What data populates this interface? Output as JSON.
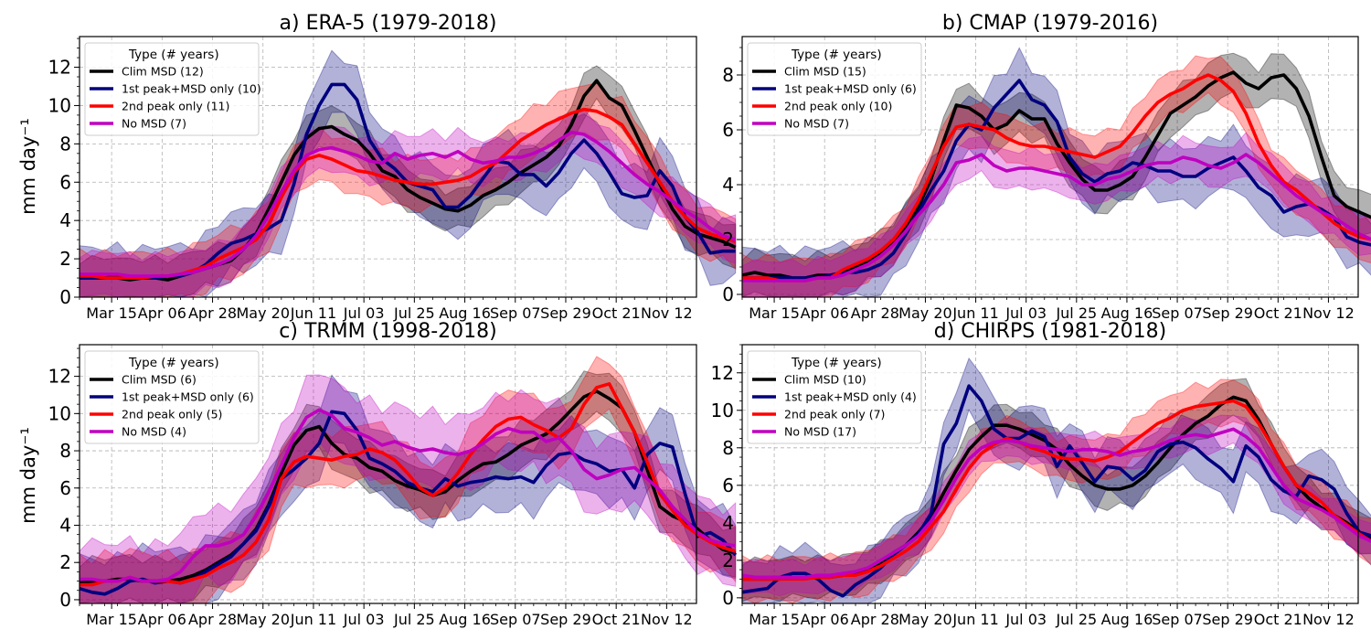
{
  "figure": {
    "ylabel": "mm day⁻¹"
  },
  "series_styles": [
    {
      "key": "clim",
      "color": "#000000"
    },
    {
      "key": "first",
      "color": "#00007f"
    },
    {
      "key": "second",
      "color": "#ff0000"
    },
    {
      "key": "none",
      "color": "#bf00bf"
    }
  ],
  "legend_title": "Type (# years)",
  "chart_data": [
    {
      "type": "line",
      "title": "a) ERA-5 (1979-2018)",
      "xlabel": "",
      "ylabel": "mm day⁻¹",
      "x_start_date": "Mar 01",
      "x_step_days": 5.5,
      "xticks": [
        "Mar 15",
        "Apr 06",
        "Apr 28",
        "May 20",
        "Jun 11",
        "Jul 03",
        "Jul 25",
        "Aug 16",
        "Sep 07",
        "Sep 29",
        "Oct 21",
        "Nov 12"
      ],
      "ylim": [
        0,
        13.6
      ],
      "yticks": [
        0,
        2,
        4,
        6,
        8,
        10,
        12
      ],
      "legend_position": "top-left",
      "series": [
        {
          "name": "Clim MSD (12)",
          "color": "#000000",
          "lo_hi": 1.2,
          "values": [
            1.0,
            1.0,
            1.0,
            1.0,
            0.9,
            1.0,
            1.0,
            0.9,
            1.1,
            1.3,
            1.5,
            1.7,
            1.9,
            2.5,
            3.3,
            4.6,
            6.0,
            7.4,
            8.3,
            8.8,
            8.9,
            8.5,
            8.2,
            7.5,
            6.6,
            6.3,
            5.6,
            5.2,
            4.9,
            4.6,
            4.5,
            4.8,
            5.3,
            5.6,
            6.0,
            6.5,
            6.9,
            7.3,
            7.9,
            9.0,
            10.5,
            11.3,
            10.4,
            10.0,
            8.7,
            7.3,
            5.9,
            4.6,
            3.7,
            3.3,
            3.1,
            2.9,
            2.6
          ]
        },
        {
          "name": "1st peak+MSD only (10)",
          "color": "#00007f",
          "lo_hi": 1.8,
          "values": [
            1.0,
            1.0,
            1.0,
            1.1,
            1.0,
            1.0,
            1.0,
            1.1,
            1.1,
            1.3,
            1.7,
            2.3,
            2.8,
            3.0,
            3.3,
            3.6,
            4.0,
            5.9,
            8.5,
            10.0,
            11.1,
            11.1,
            10.3,
            8.2,
            7.2,
            6.7,
            6.0,
            5.8,
            5.6,
            4.7,
            4.7,
            5.3,
            6.2,
            7.1,
            7.0,
            6.4,
            6.4,
            5.8,
            6.5,
            7.5,
            8.2,
            7.5,
            6.5,
            5.4,
            5.2,
            5.3,
            6.6,
            5.8,
            4.2,
            3.4,
            2.3,
            2.4,
            2.4
          ]
        },
        {
          "name": "2nd peak only (11)",
          "color": "#ff0000",
          "lo_hi": 1.5,
          "values": [
            1.1,
            1.1,
            1.0,
            1.0,
            1.0,
            1.0,
            1.1,
            1.1,
            1.2,
            1.4,
            1.6,
            2.0,
            2.3,
            2.6,
            3.0,
            3.8,
            5.2,
            6.5,
            7.2,
            7.4,
            7.2,
            6.9,
            6.6,
            6.5,
            6.3,
            6.1,
            6.0,
            5.9,
            5.9,
            6.0,
            6.1,
            6.3,
            6.7,
            7.0,
            7.6,
            8.2,
            8.6,
            9.0,
            9.3,
            9.6,
            9.8,
            9.7,
            9.4,
            9.0,
            8.0,
            7.0,
            6.0,
            5.0,
            4.2,
            3.6,
            3.3,
            3.1,
            2.9
          ]
        },
        {
          "name": "No MSD (7)",
          "color": "#bf00bf",
          "lo_hi": 1.3,
          "values": [
            1.2,
            1.2,
            1.2,
            1.2,
            1.1,
            1.1,
            1.1,
            1.1,
            1.2,
            1.3,
            1.5,
            1.7,
            2.0,
            2.5,
            3.2,
            4.3,
            5.5,
            6.6,
            7.4,
            7.7,
            7.8,
            7.6,
            7.4,
            7.1,
            7.0,
            7.5,
            7.2,
            7.4,
            7.5,
            7.3,
            7.6,
            7.2,
            7.0,
            7.1,
            7.3,
            7.3,
            7.5,
            7.8,
            8.2,
            8.6,
            8.5,
            8.1,
            7.6,
            7.0,
            6.4,
            5.9,
            5.5,
            5.0,
            4.5,
            4.1,
            3.6,
            3.2,
            3.0
          ]
        }
      ]
    },
    {
      "type": "line",
      "title": "b) CMAP (1979-2016)",
      "xlabel": "",
      "ylabel": "",
      "x_start_date": "Mar 01",
      "x_step_days": 5.5,
      "xticks": [
        "Mar 15",
        "Apr 06",
        "Apr 28",
        "May 20",
        "Jun 11",
        "Jul 03",
        "Jul 25",
        "Aug 16",
        "Sep 07",
        "Sep 29",
        "Oct 21",
        "Nov 12"
      ],
      "ylim": [
        -0.1,
        9.4
      ],
      "yticks": [
        0,
        2,
        4,
        6,
        8
      ],
      "legend_position": "top-left",
      "series": [
        {
          "name": "Clim MSD (15)",
          "color": "#000000",
          "lo_hi": 0.9,
          "values": [
            0.7,
            0.8,
            0.7,
            0.7,
            0.6,
            0.6,
            0.7,
            0.7,
            0.8,
            1.0,
            1.2,
            1.5,
            1.9,
            2.5,
            3.2,
            4.2,
            5.6,
            6.9,
            6.8,
            6.5,
            6.0,
            6.2,
            6.7,
            6.4,
            6.4,
            5.5,
            4.8,
            4.2,
            3.8,
            3.8,
            4.0,
            4.3,
            5.0,
            5.8,
            6.6,
            6.9,
            7.2,
            7.6,
            7.9,
            8.1,
            7.7,
            7.5,
            7.9,
            8.0,
            7.5,
            6.5,
            5.0,
            3.6,
            3.2,
            3.0,
            2.8,
            2.5,
            2.1
          ]
        },
        {
          "name": "1st peak+MSD only (6)",
          "color": "#00007f",
          "lo_hi": 1.2,
          "values": [
            0.6,
            0.6,
            0.6,
            0.6,
            0.6,
            0.6,
            0.6,
            0.7,
            0.8,
            0.8,
            0.9,
            1.1,
            1.5,
            2.2,
            3.0,
            3.8,
            4.5,
            5.6,
            6.2,
            6.0,
            6.8,
            7.3,
            7.8,
            7.1,
            6.9,
            6.3,
            5.0,
            4.4,
            4.1,
            4.4,
            4.5,
            4.8,
            4.7,
            4.5,
            4.5,
            4.3,
            4.3,
            4.6,
            4.8,
            5.0,
            4.5,
            3.9,
            3.6,
            3.0,
            3.2,
            3.3,
            3.1,
            2.8,
            2.1,
            1.9,
            1.8,
            1.6,
            1.5
          ]
        },
        {
          "name": "2nd peak only (10)",
          "color": "#ff0000",
          "lo_hi": 0.9,
          "values": [
            0.6,
            0.6,
            0.6,
            0.5,
            0.5,
            0.5,
            0.6,
            0.6,
            0.9,
            1.1,
            1.3,
            1.6,
            2.0,
            2.6,
            3.4,
            4.4,
            5.4,
            6.1,
            6.2,
            6.1,
            6.0,
            5.7,
            5.5,
            5.4,
            5.4,
            5.3,
            5.2,
            5.1,
            5.0,
            5.2,
            5.4,
            5.9,
            6.5,
            7.0,
            7.3,
            7.5,
            7.8,
            8.0,
            7.8,
            7.4,
            6.6,
            5.5,
            4.7,
            4.1,
            3.8,
            3.4,
            3.0,
            2.6,
            2.3,
            2.1,
            2.0,
            1.9,
            1.8
          ]
        },
        {
          "name": "No MSD (7)",
          "color": "#bf00bf",
          "lo_hi": 0.8,
          "values": [
            0.5,
            0.5,
            0.5,
            0.5,
            0.5,
            0.5,
            0.6,
            0.6,
            0.7,
            0.9,
            1.1,
            1.4,
            1.8,
            2.3,
            2.9,
            3.4,
            4.0,
            4.8,
            4.9,
            5.1,
            4.7,
            4.5,
            4.6,
            4.6,
            4.5,
            4.4,
            4.3,
            4.0,
            4.0,
            4.2,
            4.3,
            4.5,
            4.7,
            4.8,
            4.8,
            5.0,
            4.9,
            4.7,
            4.6,
            4.8,
            5.1,
            4.8,
            4.4,
            4.0,
            3.6,
            3.3,
            3.0,
            2.8,
            2.5,
            2.2,
            2.0,
            1.8,
            1.6
          ]
        }
      ]
    },
    {
      "type": "line",
      "title": "c) TRMM (1998-2018)",
      "xlabel": "",
      "ylabel": "mm day⁻¹",
      "x_start_date": "Mar 01",
      "x_step_days": 5.5,
      "xticks": [
        "Mar 15",
        "Apr 06",
        "Apr 28",
        "May 20",
        "Jun 11",
        "Jul 03",
        "Jul 25",
        "Aug 16",
        "Sep 07",
        "Sep 29",
        "Oct 21",
        "Nov 12"
      ],
      "ylim": [
        -0.2,
        13.7
      ],
      "yticks": [
        0,
        2,
        4,
        6,
        8,
        10,
        12
      ],
      "legend_position": "top-left",
      "series": [
        {
          "name": "Clim MSD (6)",
          "color": "#000000",
          "lo_hi": 1.4,
          "values": [
            0.9,
            1.0,
            1.0,
            1.1,
            1.1,
            1.0,
            1.0,
            1.0,
            1.1,
            1.3,
            1.6,
            2.0,
            2.4,
            3.0,
            3.8,
            5.1,
            6.8,
            8.3,
            9.1,
            9.3,
            8.4,
            7.8,
            7.6,
            7.1,
            6.9,
            6.4,
            6.1,
            5.9,
            5.6,
            5.8,
            6.4,
            6.9,
            7.3,
            7.4,
            7.8,
            8.3,
            8.6,
            8.9,
            9.5,
            10.2,
            10.9,
            11.2,
            10.8,
            10.3,
            9.0,
            7.0,
            5.0,
            4.5,
            4.2,
            3.8,
            3.2,
            2.7,
            2.5
          ]
        },
        {
          "name": "1st peak+MSD only (6)",
          "color": "#00007f",
          "lo_hi": 2.0,
          "values": [
            0.6,
            0.4,
            0.3,
            0.6,
            1.0,
            1.1,
            0.9,
            1.0,
            0.9,
            1.1,
            1.5,
            1.9,
            2.3,
            3.0,
            3.7,
            5.0,
            6.5,
            7.0,
            7.6,
            8.4,
            10.1,
            10.0,
            9.1,
            7.6,
            7.3,
            6.9,
            6.3,
            6.0,
            5.8,
            6.5,
            6.1,
            6.3,
            6.4,
            6.6,
            6.5,
            6.6,
            6.3,
            7.2,
            7.8,
            7.9,
            7.5,
            7.3,
            6.9,
            7.0,
            6.0,
            7.8,
            8.4,
            8.2,
            5.7,
            3.4,
            3.6,
            3.2,
            2.4
          ]
        },
        {
          "name": "2nd peak only (5)",
          "color": "#ff0000",
          "lo_hi": 1.7,
          "values": [
            0.8,
            0.8,
            1.0,
            1.0,
            1.2,
            1.0,
            1.0,
            1.0,
            0.9,
            1.1,
            1.3,
            1.7,
            2.0,
            2.4,
            3.1,
            4.3,
            6.5,
            7.4,
            7.7,
            7.6,
            7.5,
            7.7,
            7.8,
            8.1,
            7.9,
            7.5,
            6.8,
            6.0,
            5.6,
            6.0,
            6.8,
            7.8,
            8.6,
            9.3,
            9.7,
            9.8,
            9.4,
            9.1,
            8.7,
            9.2,
            10.5,
            11.4,
            11.6,
            10.3,
            9.0,
            7.4,
            5.7,
            4.8,
            4.0,
            3.5,
            3.1,
            2.8,
            2.6
          ]
        },
        {
          "name": "No MSD (4)",
          "color": "#bf00bf",
          "lo_hi": 2.3,
          "values": [
            1.1,
            1.1,
            1.0,
            1.0,
            1.2,
            1.0,
            1.0,
            1.1,
            1.5,
            2.3,
            2.9,
            2.9,
            3.1,
            3.5,
            4.5,
            5.8,
            7.2,
            8.7,
            9.8,
            10.2,
            9.9,
            9.2,
            9.0,
            8.7,
            8.3,
            8.5,
            8.2,
            8.0,
            8.1,
            7.9,
            7.8,
            8.0,
            8.4,
            8.9,
            9.2,
            9.0,
            9.0,
            8.5,
            8.7,
            8.0,
            7.0,
            6.5,
            6.7,
            7.0,
            7.1,
            6.5,
            5.9,
            5.0,
            4.3,
            3.6,
            3.2,
            3.0,
            2.9
          ]
        }
      ]
    },
    {
      "type": "line",
      "title": "d) CHIRPS (1981-2018)",
      "xlabel": "",
      "ylabel": "",
      "x_start_date": "Mar 01",
      "x_step_days": 5.5,
      "xticks": [
        "Mar 15",
        "Apr 06",
        "Apr 28",
        "May 20",
        "Jun 11",
        "Jul 03",
        "Jul 25",
        "Aug 16",
        "Sep 07",
        "Sep 29",
        "Oct 21",
        "Nov 12"
      ],
      "ylim": [
        -0.3,
        13.5
      ],
      "yticks": [
        0,
        2,
        4,
        6,
        8,
        10,
        12
      ],
      "legend_position": "top-left",
      "series": [
        {
          "name": "Clim MSD (10)",
          "color": "#000000",
          "lo_hi": 1.2,
          "values": [
            1.0,
            1.0,
            1.0,
            1.0,
            1.1,
            1.1,
            1.1,
            1.1,
            1.2,
            1.3,
            1.5,
            1.9,
            2.4,
            2.8,
            3.5,
            4.3,
            5.6,
            6.8,
            7.9,
            8.6,
            9.2,
            9.2,
            9.0,
            8.7,
            8.4,
            7.9,
            7.1,
            6.5,
            6.0,
            5.8,
            5.8,
            6.0,
            6.5,
            7.2,
            8.0,
            8.7,
            9.3,
            9.7,
            10.3,
            10.7,
            10.5,
            9.5,
            8.2,
            7.0,
            6.0,
            5.3,
            4.8,
            4.4,
            4.0,
            3.5,
            3.1,
            2.8,
            2.6
          ]
        },
        {
          "name": "1st peak+MSD only (4)",
          "color": "#00007f",
          "lo_hi": 1.7,
          "values": [
            0.3,
            0.4,
            0.5,
            1.1,
            1.3,
            1.3,
            1.0,
            0.4,
            0.1,
            0.7,
            1.1,
            1.6,
            2.3,
            2.8,
            3.4,
            4.5,
            8.2,
            9.3,
            11.3,
            10.5,
            9.0,
            8.5,
            8.5,
            8.9,
            8.6,
            7.0,
            8.1,
            7.2,
            6.2,
            7.0,
            6.9,
            6.3,
            6.8,
            7.8,
            8.2,
            8.3,
            8.0,
            7.4,
            6.9,
            6.2,
            8.1,
            7.5,
            6.3,
            5.7,
            5.4,
            6.5,
            6.3,
            5.8,
            4.5,
            3.5,
            3.3,
            3.5,
            2.3
          ]
        },
        {
          "name": "2nd peak only (7)",
          "color": "#ff0000",
          "lo_hi": 1.3,
          "values": [
            1.0,
            1.0,
            1.0,
            1.0,
            1.0,
            1.0,
            1.1,
            1.1,
            1.2,
            1.2,
            1.4,
            1.7,
            2.1,
            2.5,
            3.0,
            3.8,
            4.6,
            5.8,
            6.9,
            7.7,
            8.2,
            8.5,
            8.3,
            8.0,
            7.8,
            7.5,
            7.4,
            7.4,
            7.3,
            7.5,
            7.8,
            8.3,
            8.8,
            9.3,
            9.6,
            10.0,
            10.2,
            10.3,
            10.4,
            10.5,
            10.2,
            9.3,
            8.2,
            7.0,
            6.0,
            5.6,
            5.1,
            4.4,
            3.9,
            3.4,
            3.0,
            2.8,
            2.7
          ]
        },
        {
          "name": "No MSD (17)",
          "color": "#bf00bf",
          "lo_hi": 1.0,
          "values": [
            1.2,
            1.1,
            1.1,
            1.1,
            1.1,
            1.1,
            1.2,
            1.2,
            1.3,
            1.4,
            1.6,
            2.0,
            2.4,
            2.8,
            3.3,
            4.1,
            5.2,
            6.4,
            7.4,
            8.0,
            8.3,
            8.4,
            8.3,
            8.1,
            8.0,
            7.9,
            7.8,
            7.9,
            7.9,
            7.8,
            7.6,
            7.8,
            7.9,
            8.1,
            8.4,
            8.6,
            8.7,
            8.6,
            8.8,
            9.0,
            8.6,
            8.0,
            7.0,
            6.0,
            5.3,
            5.0,
            4.7,
            4.3,
            3.8,
            3.3,
            3.0,
            2.8,
            2.6
          ]
        }
      ]
    }
  ]
}
